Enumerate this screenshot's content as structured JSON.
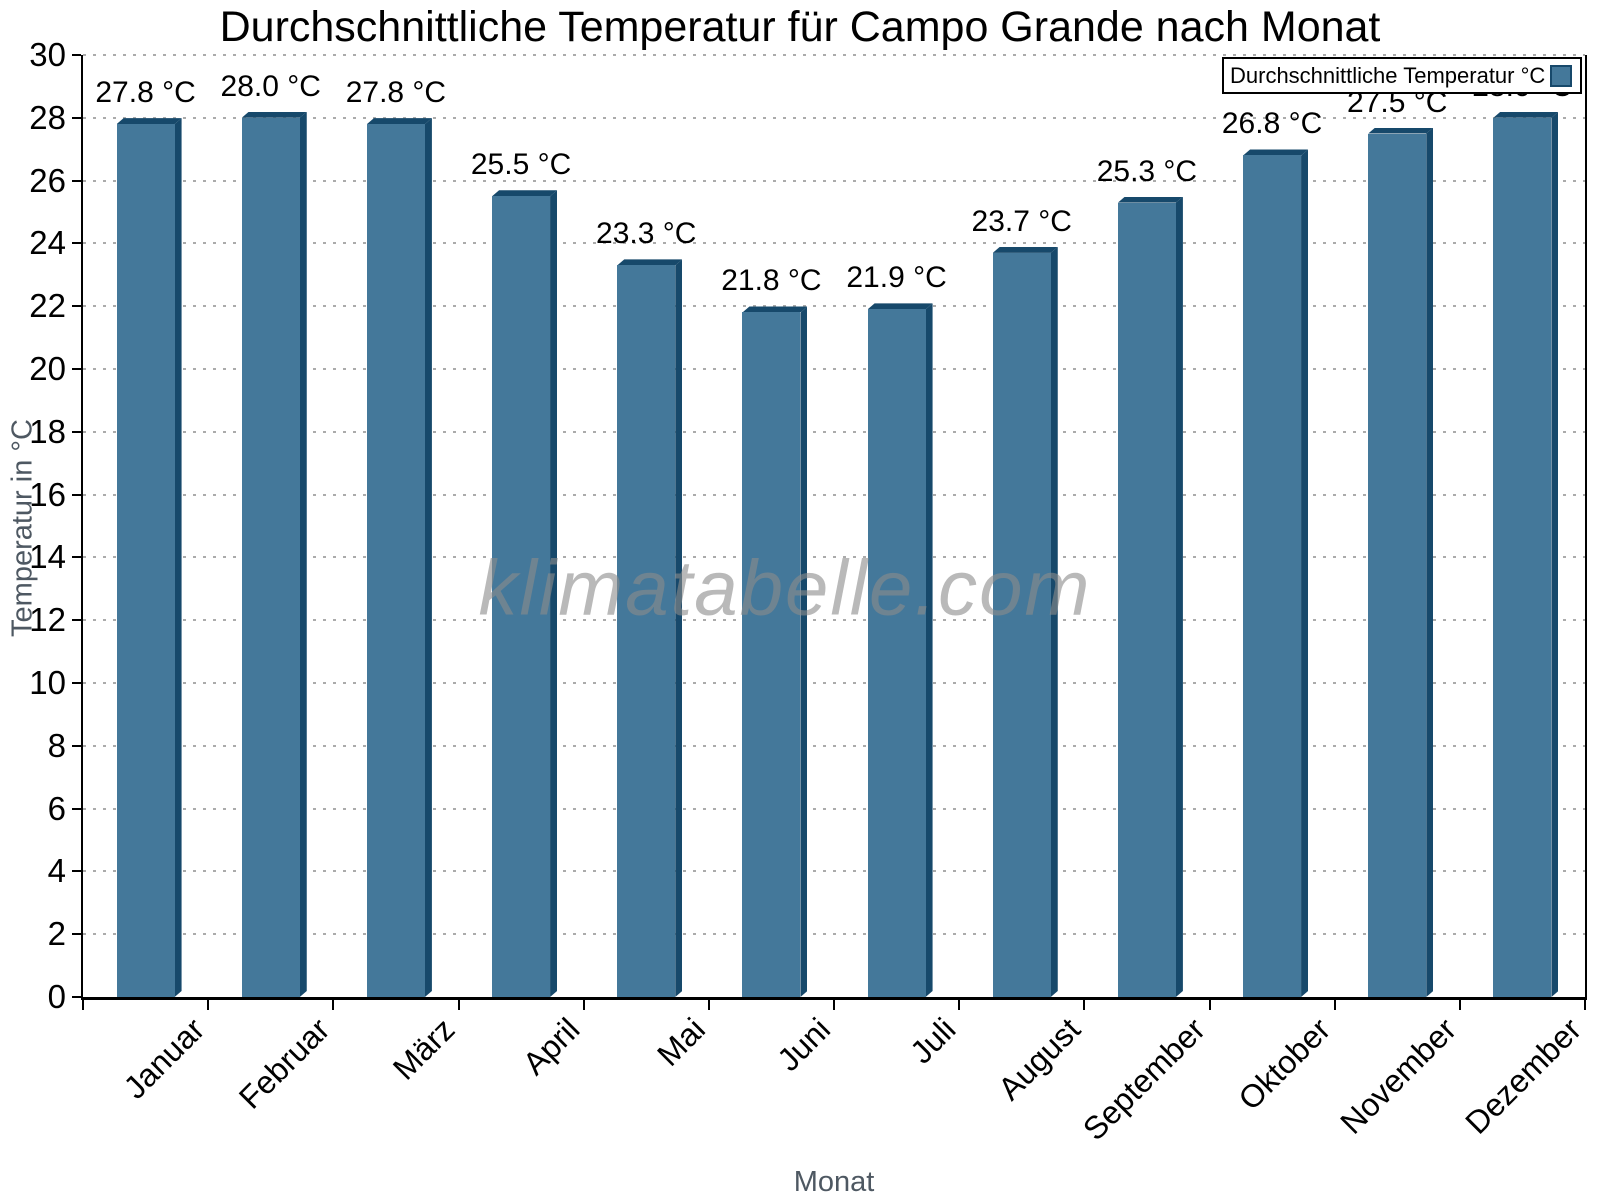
{
  "title": "Durchschnittliche Temperatur für Campo Grande nach Monat",
  "legend": {
    "label": "Durchschnittliche Temperatur °C"
  },
  "watermark": "klimatabelle.com",
  "chart_data": {
    "type": "bar",
    "title": "Durchschnittliche Temperatur für Campo Grande nach Monat",
    "xlabel": "Monat",
    "ylabel": "Temperatur in °C",
    "categories": [
      "Januar",
      "Februar",
      "März",
      "April",
      "Mai",
      "Juni",
      "Juli",
      "August",
      "September",
      "Oktober",
      "November",
      "Dezember"
    ],
    "series": [
      {
        "name": "Durchschnittliche Temperatur °C",
        "values": [
          27.8,
          28.0,
          27.8,
          25.5,
          23.3,
          21.8,
          21.9,
          23.7,
          25.3,
          26.8,
          27.5,
          28.0
        ],
        "value_labels": [
          "27.8 °C",
          "28.0 °C",
          "27.8 °C",
          "25.5 °C",
          "23.3 °C",
          "21.8 °C",
          "21.9 °C",
          "23.7 °C",
          "25.3 °C",
          "26.8 °C",
          "27.5 °C",
          "28.0 °C"
        ]
      }
    ],
    "ylim": [
      0,
      30
    ],
    "ytick_step": 2,
    "yticks": [
      0,
      2,
      4,
      6,
      8,
      10,
      12,
      14,
      16,
      18,
      20,
      22,
      24,
      26,
      28,
      30
    ],
    "grid": "dotted-horizontal",
    "legend_position": "top-right",
    "bar_style": "3d",
    "colors": {
      "bar_front": "#44789a",
      "bar_side": "#17496b",
      "grid": "#ababab",
      "axis": "#000000",
      "axis_title": "#4e5862",
      "watermark": "#8c8c8c"
    }
  }
}
